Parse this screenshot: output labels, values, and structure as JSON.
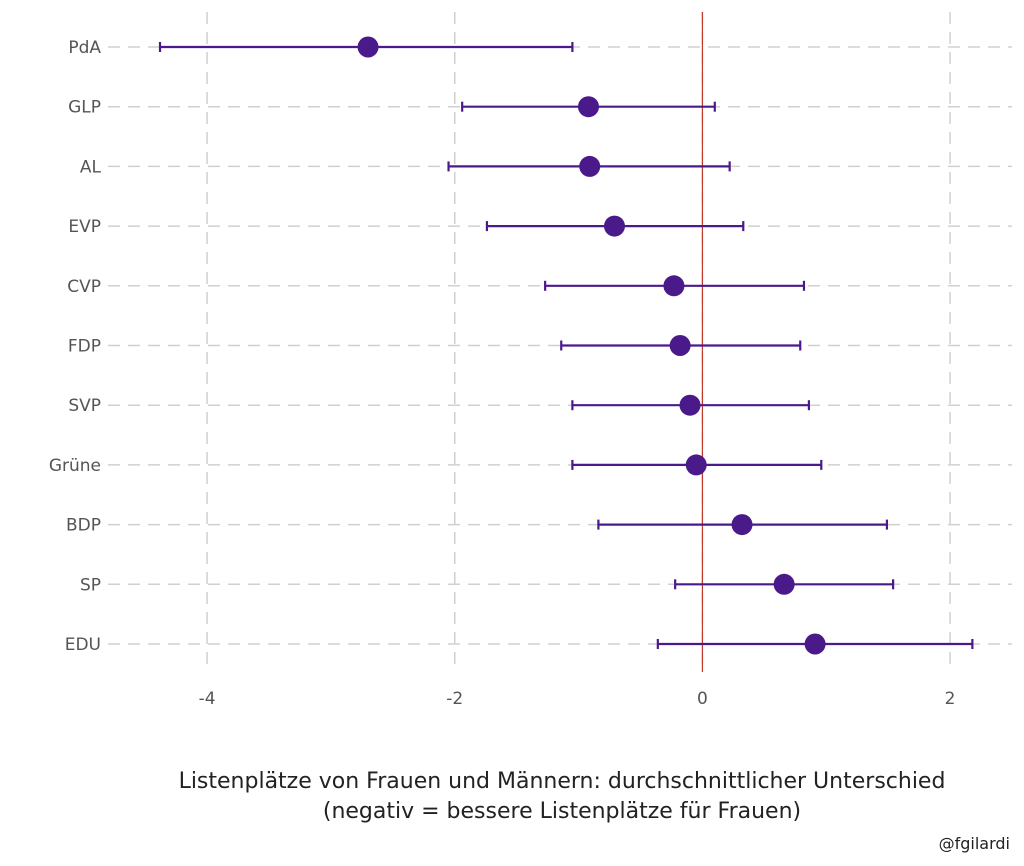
{
  "chart_data": {
    "type": "scatter",
    "subtype": "dot-and-whisker",
    "categories": [
      "PdA",
      "GLP",
      "AL",
      "EVP",
      "CVP",
      "FDP",
      "SVP",
      "Grüne",
      "BDP",
      "SP",
      "EDU"
    ],
    "estimates": [
      -2.7,
      -0.92,
      -0.91,
      -0.71,
      -0.23,
      -0.18,
      -0.1,
      -0.05,
      0.32,
      0.66,
      0.91
    ],
    "lower": [
      -4.38,
      -1.94,
      -2.05,
      -1.74,
      -1.27,
      -1.14,
      -1.05,
      -1.05,
      -0.84,
      -0.22,
      -0.36
    ],
    "upper": [
      -1.05,
      0.1,
      0.22,
      0.33,
      0.82,
      0.79,
      0.86,
      0.96,
      1.49,
      1.54,
      2.18
    ],
    "xlim": [
      -4.8,
      2.5
    ],
    "x_ticks": [
      -4,
      -2,
      0,
      2
    ],
    "x_tick_labels": [
      "-4",
      "-2",
      "0",
      "2"
    ],
    "reference_line": 0,
    "xlabel_line1": "Listenplätze von Frauen und Männern: durchschnittlicher Unterschied",
    "xlabel_line2": "(negativ = bessere Listenplätze für Frauen)",
    "ylabel": "",
    "caption": "@fgilardi",
    "grid": true,
    "legend": "none",
    "colors": {
      "points": "#4b1a8a",
      "reference_line": "#c0392b",
      "grid": "#d0d0d0"
    }
  }
}
